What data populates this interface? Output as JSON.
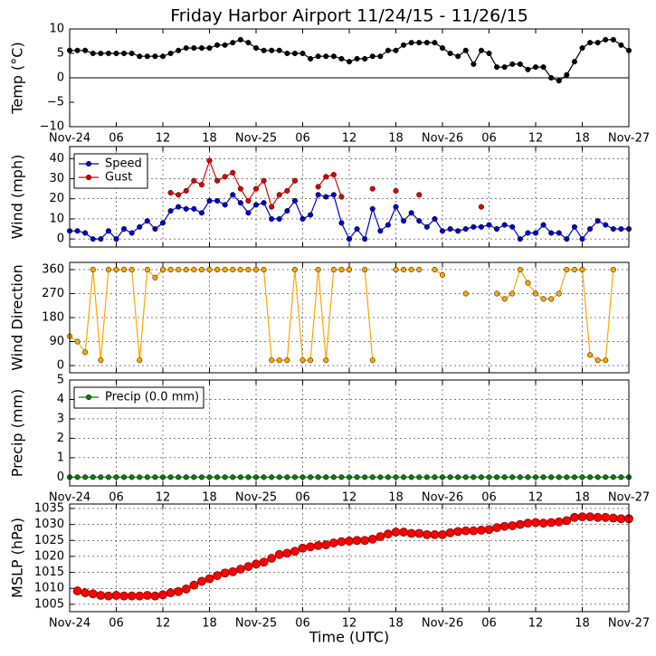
{
  "chart_data": [
    {
      "type": "line",
      "title": "Friday Harbor Airport 11/24/15 - 11/26/15",
      "ylabel": "Temp (°C)",
      "xlim": [
        0,
        72
      ],
      "xticks": [
        {
          "value": 0,
          "label": "Nov-24"
        },
        {
          "value": 6,
          "label": "06"
        },
        12,
        18,
        {
          "value": 24,
          "label": "Nov-25"
        },
        {
          "value": 30,
          "label": "06"
        },
        {
          "value": 36,
          "label": "12"
        },
        {
          "value": 42,
          "label": "18"
        },
        {
          "value": 48,
          "label": "Nov-26"
        },
        {
          "value": 54,
          "label": "06"
        },
        {
          "value": 60,
          "label": "12"
        },
        {
          "value": 66,
          "label": "18"
        },
        {
          "value": 72,
          "label": "Nov-27"
        }
      ],
      "ylim": [
        -10,
        10
      ],
      "yticks": [
        10,
        5,
        0,
        {
          "value": -5,
          "label": "−5"
        },
        {
          "value": -10,
          "label": "−10"
        }
      ],
      "grid": false,
      "hline": 0,
      "x": [
        0,
        1,
        2,
        3,
        4,
        5,
        6,
        7,
        8,
        9,
        10,
        11,
        12,
        13,
        14,
        15,
        16,
        17,
        18,
        19,
        20,
        21,
        22,
        23,
        24,
        25,
        26,
        27,
        28,
        29,
        30,
        31,
        32,
        33,
        34,
        35,
        36,
        37,
        38,
        39,
        40,
        41,
        42,
        43,
        44,
        45,
        46,
        47,
        48,
        49,
        50,
        51,
        52,
        53,
        54,
        55,
        56,
        57,
        58,
        59,
        60,
        61,
        62,
        63,
        64,
        65,
        66,
        67,
        68,
        69,
        70,
        71,
        72
      ],
      "series": [
        {
          "name": "Temp",
          "color": "#000000",
          "values": [
            5.6,
            5.6,
            5.6,
            5.0,
            5.0,
            5.0,
            5.0,
            5.0,
            5.0,
            4.4,
            4.4,
            4.4,
            4.4,
            5.0,
            5.6,
            6.1,
            6.1,
            6.1,
            6.1,
            6.7,
            6.7,
            7.2,
            7.8,
            7.2,
            6.1,
            5.6,
            5.6,
            5.6,
            5.0,
            5.0,
            5.0,
            3.9,
            4.4,
            4.4,
            4.4,
            3.9,
            3.3,
            3.9,
            3.9,
            4.4,
            4.4,
            5.6,
            5.6,
            6.7,
            7.2,
            7.2,
            7.2,
            7.2,
            6.1,
            5.0,
            4.4,
            5.6,
            2.8,
            5.6,
            5.0,
            2.2,
            2.2,
            2.8,
            2.8,
            1.7,
            2.2,
            2.2,
            0.0,
            -0.6,
            0.6,
            3.3,
            6.1,
            7.2,
            7.2,
            7.8,
            7.8,
            6.7,
            5.6
          ]
        }
      ]
    },
    {
      "type": "line",
      "ylabel": "Wind (mph)",
      "xlim": [
        0,
        72
      ],
      "ylim": [
        -4,
        46
      ],
      "yticks": [
        0,
        10,
        20,
        30,
        40
      ],
      "grid": true,
      "legend": "upper left",
      "x": [
        0,
        1,
        2,
        3,
        4,
        5,
        6,
        7,
        8,
        9,
        10,
        11,
        12,
        13,
        14,
        15,
        16,
        17,
        18,
        19,
        20,
        21,
        22,
        23,
        24,
        25,
        26,
        27,
        28,
        29,
        30,
        31,
        32,
        33,
        34,
        35,
        36,
        37,
        38,
        39,
        40,
        41,
        42,
        43,
        44,
        45,
        46,
        47,
        48,
        49,
        50,
        51,
        52,
        53,
        54,
        55,
        56,
        57,
        58,
        59,
        60,
        61,
        62,
        63,
        64,
        65,
        66,
        67,
        68,
        69,
        70,
        71,
        72
      ],
      "series": [
        {
          "name": "Speed",
          "color": "#0000cc",
          "values": [
            4,
            4,
            3,
            0,
            0,
            4,
            0,
            5,
            3,
            6,
            9,
            5,
            8,
            14,
            16,
            15,
            15,
            13,
            19,
            19,
            17,
            22,
            18,
            13,
            17,
            18,
            10,
            10,
            14,
            19,
            10,
            12,
            22,
            21,
            22,
            8,
            0,
            5,
            0,
            15,
            4,
            7,
            16,
            9,
            13,
            9,
            6,
            10,
            4,
            5,
            4,
            5,
            6,
            6,
            7,
            5,
            7,
            6,
            0,
            3,
            3,
            7,
            3,
            3,
            0,
            6,
            0,
            5,
            9,
            7,
            5,
            5,
            5
          ]
        },
        {
          "name": "Gust",
          "color": "#dd0000",
          "values": [
            null,
            null,
            null,
            null,
            null,
            null,
            null,
            null,
            null,
            null,
            null,
            null,
            null,
            23,
            22,
            24,
            29,
            27,
            39,
            29,
            31,
            33,
            25,
            19,
            25,
            29,
            16,
            22,
            24,
            29,
            null,
            null,
            26,
            31,
            32,
            21,
            null,
            null,
            null,
            25,
            null,
            null,
            24,
            null,
            null,
            22,
            null,
            null,
            null,
            null,
            null,
            null,
            null,
            16,
            null,
            null,
            null,
            null,
            null,
            null,
            null,
            null,
            null,
            null,
            null,
            null,
            null,
            null,
            null,
            null,
            null,
            null,
            null
          ]
        }
      ]
    },
    {
      "type": "line",
      "ylabel": "Wind Direction",
      "xlim": [
        0,
        72
      ],
      "ylim": [
        -27,
        387
      ],
      "yticks": [
        0,
        90,
        180,
        270,
        360
      ],
      "grid": true,
      "x": [
        0,
        1,
        2,
        3,
        4,
        5,
        6,
        7,
        8,
        9,
        10,
        11,
        12,
        13,
        14,
        15,
        16,
        17,
        18,
        19,
        20,
        21,
        22,
        23,
        24,
        25,
        26,
        27,
        28,
        29,
        30,
        31,
        32,
        33,
        34,
        35,
        36,
        37,
        38,
        39,
        40,
        41,
        42,
        43,
        44,
        45,
        46,
        47,
        48,
        49,
        50,
        51,
        52,
        53,
        54,
        55,
        56,
        57,
        58,
        59,
        60,
        61,
        62,
        63,
        64,
        65,
        66,
        67,
        68,
        69,
        70,
        71,
        72
      ],
      "series": [
        {
          "name": "Direction",
          "color": "#ffa500",
          "values": [
            110,
            90,
            50,
            360,
            20,
            360,
            360,
            360,
            360,
            20,
            360,
            330,
            360,
            360,
            360,
            360,
            360,
            360,
            360,
            360,
            360,
            360,
            360,
            360,
            360,
            360,
            20,
            20,
            20,
            360,
            20,
            20,
            360,
            20,
            360,
            360,
            360,
            null,
            360,
            20,
            null,
            null,
            360,
            360,
            360,
            360,
            null,
            360,
            340,
            null,
            null,
            270,
            null,
            null,
            null,
            270,
            250,
            270,
            360,
            310,
            270,
            250,
            250,
            270,
            360,
            360,
            360,
            40,
            20,
            20,
            360,
            null,
            null
          ]
        }
      ]
    },
    {
      "type": "line",
      "ylabel": "Precip (mm)",
      "xlim": [
        0,
        72
      ],
      "xticks": [
        {
          "value": 0,
          "label": "Nov-24"
        },
        {
          "value": 6,
          "label": "06"
        },
        12,
        18,
        {
          "value": 24,
          "label": "Nov-25"
        },
        {
          "value": 30,
          "label": "06"
        },
        {
          "value": 36,
          "label": "12"
        },
        {
          "value": 42,
          "label": "18"
        },
        {
          "value": 48,
          "label": "Nov-26"
        },
        {
          "value": 54,
          "label": "06"
        },
        {
          "value": 60,
          "label": "12"
        },
        {
          "value": 66,
          "label": "18"
        },
        {
          "value": 72,
          "label": "Nov-27"
        }
      ],
      "ylim": [
        -0.45,
        5
      ],
      "yticks": [
        0,
        1,
        2,
        3,
        4,
        5
      ],
      "grid": true,
      "legend": "upper left",
      "x": [
        0,
        1,
        2,
        3,
        4,
        5,
        6,
        7,
        8,
        9,
        10,
        11,
        12,
        13,
        14,
        15,
        16,
        17,
        18,
        19,
        20,
        21,
        22,
        23,
        24,
        25,
        26,
        27,
        28,
        29,
        30,
        31,
        32,
        33,
        34,
        35,
        36,
        37,
        38,
        39,
        40,
        41,
        42,
        43,
        44,
        45,
        46,
        47,
        48,
        49,
        50,
        51,
        52,
        53,
        54,
        55,
        56,
        57,
        58,
        59,
        60,
        61,
        62,
        63,
        64,
        65,
        66,
        67,
        68,
        69,
        70,
        71,
        72
      ],
      "series": [
        {
          "name": "Precip (0.0 mm)",
          "color": "#008000",
          "values": [
            0,
            0,
            0,
            0,
            0,
            0,
            0,
            0,
            0,
            0,
            0,
            0,
            0,
            0,
            0,
            0,
            0,
            0,
            0,
            0,
            0,
            0,
            0,
            0,
            0,
            0,
            0,
            0,
            0,
            0,
            0,
            0,
            0,
            0,
            0,
            0,
            0,
            0,
            0,
            0,
            0,
            0,
            0,
            0,
            0,
            0,
            0,
            0,
            0,
            0,
            0,
            0,
            0,
            0,
            0,
            0,
            0,
            0,
            0,
            0,
            0,
            0,
            0,
            0,
            0,
            0,
            0,
            0,
            0,
            0,
            0,
            0,
            0
          ]
        }
      ]
    },
    {
      "type": "scatter",
      "ylabel": "MSLP (hPa)",
      "xlabel": "Time (UTC)",
      "xlim": [
        0,
        72
      ],
      "xticks": [
        {
          "value": 0,
          "label": "Nov-24"
        },
        {
          "value": 6,
          "label": "06"
        },
        12,
        18,
        {
          "value": 24,
          "label": "Nov-25"
        },
        {
          "value": 30,
          "label": "06"
        },
        {
          "value": 36,
          "label": "12"
        },
        {
          "value": 42,
          "label": "18"
        },
        {
          "value": 48,
          "label": "Nov-26"
        },
        {
          "value": 54,
          "label": "06"
        },
        {
          "value": 60,
          "label": "12"
        },
        {
          "value": 66,
          "label": "18"
        },
        {
          "value": 72,
          "label": "Nov-27"
        }
      ],
      "ylim": [
        1002.7,
        1036.4
      ],
      "yticks": [
        1005,
        1010,
        1015,
        1020,
        1025,
        1030,
        1035
      ],
      "grid": true,
      "x": [
        1,
        2,
        3,
        4,
        5,
        6,
        7,
        8,
        9,
        10,
        11,
        12,
        13,
        14,
        15,
        16,
        17,
        18,
        19,
        20,
        21,
        22,
        23,
        24,
        25,
        26,
        27,
        28,
        29,
        30,
        31,
        32,
        33,
        34,
        35,
        36,
        37,
        38,
        39,
        40,
        41,
        42,
        43,
        44,
        45,
        46,
        47,
        48,
        49,
        50,
        51,
        52,
        53,
        54,
        55,
        56,
        57,
        58,
        59,
        60,
        61,
        62,
        63,
        64,
        65,
        66,
        67,
        68,
        69,
        70,
        71,
        72
      ],
      "series": [
        {
          "name": "MSLP",
          "color": "#ff0000",
          "values": [
            1009.2,
            1008.6,
            1008.3,
            1007.8,
            1007.6,
            1007.8,
            1007.6,
            1007.6,
            1007.6,
            1007.8,
            1007.6,
            1008.0,
            1008.6,
            1009.0,
            1009.8,
            1011.0,
            1012.2,
            1013.0,
            1014.0,
            1014.8,
            1015.2,
            1016.0,
            1016.8,
            1017.6,
            1018.2,
            1019.4,
            1020.6,
            1021.0,
            1021.6,
            1022.6,
            1023.0,
            1023.4,
            1023.6,
            1024.2,
            1024.6,
            1024.8,
            1025.0,
            1025.0,
            1025.4,
            1026.2,
            1027.0,
            1027.6,
            1027.6,
            1027.2,
            1027.2,
            1026.8,
            1026.8,
            1026.8,
            1027.4,
            1027.8,
            1028.0,
            1028.0,
            1028.2,
            1028.4,
            1029.0,
            1029.4,
            1029.6,
            1030.0,
            1030.4,
            1030.6,
            1030.4,
            1030.6,
            1030.8,
            1031.2,
            1032.2,
            1032.4,
            1032.4,
            1032.2,
            1032.2,
            1032.0,
            1031.8,
            1031.8
          ]
        }
      ]
    }
  ]
}
